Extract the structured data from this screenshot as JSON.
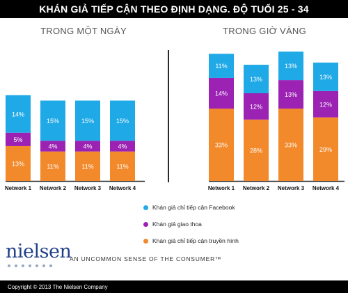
{
  "header": {
    "title": "KHÁN GIẢ TIẾP CẬN THEO ĐỊNH DẠNG. ĐỘ TUỔI 25 - 34"
  },
  "colors": {
    "facebook": "#1fa9e6",
    "overlap": "#9b22b3",
    "tv": "#f28a2c"
  },
  "legend": [
    {
      "label": "Khán giả chỉ tiếp cận Facebook",
      "color": "#1fa9e6"
    },
    {
      "label": "Khán giả giao thoa",
      "color": "#9b22b3"
    },
    {
      "label": "Khán giả chỉ tiếp cận truyền hình",
      "color": "#f28a2c"
    }
  ],
  "chart_data": [
    {
      "type": "bar",
      "stacked": true,
      "title": "TRONG MỘT NGÀY",
      "categories": [
        "Network 1",
        "Network 2",
        "Network 3",
        "Network 4"
      ],
      "series": [
        {
          "name": "Khán giả chỉ tiếp cận truyền hình",
          "values": [
            13,
            11,
            11,
            11
          ],
          "labels": [
            "13%",
            "11%",
            "11%",
            "11%"
          ]
        },
        {
          "name": "Khán giả giao thoa",
          "values": [
            5,
            4,
            4,
            4
          ],
          "labels": [
            "5%",
            "4%",
            "4%",
            "4%"
          ]
        },
        {
          "name": "Khán giả chỉ tiếp cận Facebook",
          "values": [
            14,
            15,
            15,
            15
          ],
          "labels": [
            "14%",
            "15%",
            "15%",
            "15%"
          ]
        }
      ]
    },
    {
      "type": "bar",
      "stacked": true,
      "title": "TRONG GIỜ VÀNG",
      "categories": [
        "Network 1",
        "Network 2",
        "Network 3",
        "Network 4"
      ],
      "series": [
        {
          "name": "Khán giả chỉ tiếp cận truyền hình",
          "values": [
            33,
            28,
            33,
            29
          ],
          "labels": [
            "33%",
            "28%",
            "33%",
            "29%"
          ]
        },
        {
          "name": "Khán giả giao thoa",
          "values": [
            14,
            12,
            13,
            12
          ],
          "labels": [
            "14%",
            "12%",
            "13%",
            "12%"
          ]
        },
        {
          "name": "Khán giả chỉ tiếp cận Facebook",
          "values": [
            11,
            13,
            13,
            13
          ],
          "labels": [
            "11%",
            "13%",
            "13%",
            "13%"
          ]
        }
      ]
    }
  ],
  "brand": {
    "name": "nielsen",
    "tagline": "AN UNCOMMON SENSE OF THE CONSUMER™"
  },
  "footer": {
    "copyright": "Copyright © 2013 The Nielsen Company"
  }
}
